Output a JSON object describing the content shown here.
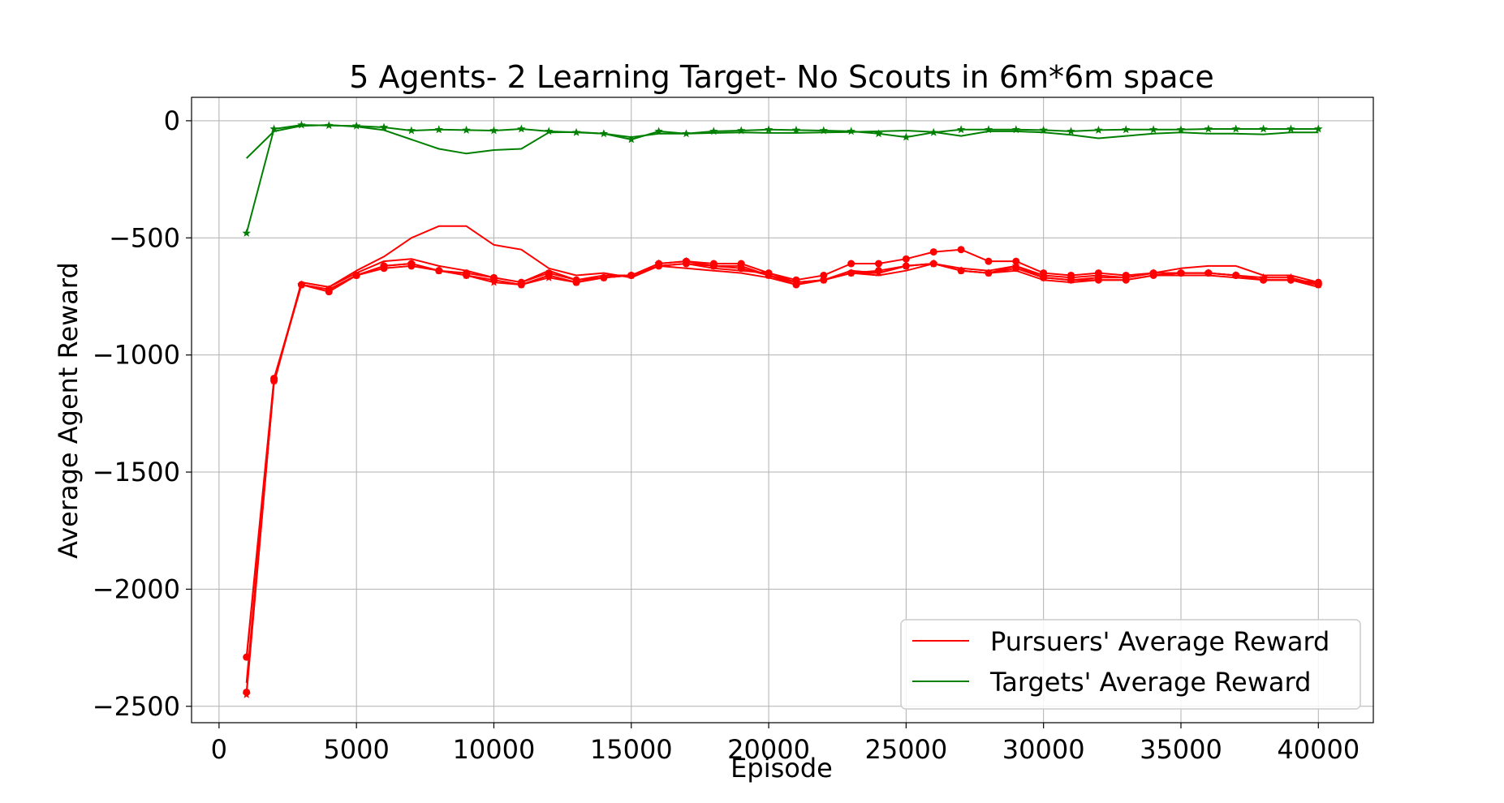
{
  "chart_data": {
    "type": "line",
    "title": "5 Agents- 2 Learning Target- No Scouts in 6m*6m space",
    "xlabel": "Episode",
    "ylabel": "Average Agent Reward",
    "xlim": [
      -1000,
      42000
    ],
    "ylim": [
      -2570,
      100
    ],
    "xticks": [
      0,
      5000,
      10000,
      15000,
      20000,
      25000,
      30000,
      35000,
      40000
    ],
    "xtick_labels": [
      "0",
      "5000",
      "10000",
      "15000",
      "20000",
      "25000",
      "30000",
      "35000",
      "40000"
    ],
    "yticks": [
      0,
      -500,
      -1000,
      -1500,
      -2000,
      -2500
    ],
    "ytick_labels": [
      "0",
      "−500",
      "−1000",
      "−1500",
      "−2000",
      "−2500"
    ],
    "grid": true,
    "legend_position": "lower-right",
    "legend": [
      {
        "label": "Pursuers' Average Reward",
        "color": "#ff0000"
      },
      {
        "label": "Targets' Average Reward",
        "color": "#008000"
      }
    ],
    "x": [
      1000,
      2000,
      3000,
      4000,
      5000,
      6000,
      7000,
      8000,
      9000,
      10000,
      11000,
      12000,
      13000,
      14000,
      15000,
      16000,
      17000,
      18000,
      19000,
      20000,
      21000,
      22000,
      23000,
      24000,
      25000,
      26000,
      27000,
      28000,
      29000,
      30000,
      31000,
      32000,
      33000,
      34000,
      35000,
      36000,
      37000,
      38000,
      39000,
      40000
    ],
    "series": [
      {
        "group": "pursuers",
        "color": "#ff0000",
        "marker": "none",
        "values": [
          -2400,
          -1120,
          -690,
          -710,
          -640,
          -580,
          -500,
          -450,
          -450,
          -530,
          -550,
          -630,
          -660,
          -650,
          -670,
          -620,
          -610,
          -630,
          -640,
          -650,
          -690,
          -680,
          -640,
          -650,
          -620,
          -610,
          -630,
          -640,
          -620,
          -660,
          -670,
          -660,
          -670,
          -650,
          -630,
          -620,
          -620,
          -660,
          -660,
          -690
        ]
      },
      {
        "group": "pursuers",
        "color": "#ff0000",
        "marker": "circle",
        "values": [
          -2290,
          -1100,
          -700,
          -730,
          -660,
          -630,
          -620,
          -640,
          -660,
          -680,
          -700,
          -660,
          -690,
          -670,
          -660,
          -610,
          -600,
          -610,
          -610,
          -650,
          -680,
          -660,
          -610,
          -610,
          -590,
          -560,
          -550,
          -600,
          -600,
          -650,
          -660,
          -650,
          -660,
          -650,
          -650,
          -650,
          -660,
          -680,
          -680,
          -690
        ]
      },
      {
        "group": "pursuers",
        "color": "#ff0000",
        "marker": "circle",
        "values": [
          -2440,
          -1110,
          -700,
          -720,
          -660,
          -620,
          -610,
          -640,
          -650,
          -670,
          -690,
          -650,
          -680,
          -670,
          -660,
          -620,
          -610,
          -620,
          -630,
          -660,
          -700,
          -680,
          -650,
          -640,
          -620,
          -610,
          -640,
          -650,
          -630,
          -670,
          -680,
          -680,
          -680,
          -660,
          -650,
          -650,
          -660,
          -680,
          -680,
          -700
        ]
      },
      {
        "group": "pursuers",
        "color": "#ff0000",
        "marker": "star",
        "values": [
          -2450,
          -1110,
          -700,
          -720,
          -660,
          -620,
          -610,
          -640,
          -660,
          -690,
          -700,
          -670,
          -690,
          -670,
          -660,
          -610,
          -600,
          -620,
          -620,
          -660,
          -690,
          -680,
          -650,
          -650,
          -620,
          -610,
          -640,
          -650,
          -620,
          -670,
          -680,
          -670,
          -670,
          -650,
          -650,
          -650,
          -660,
          -670,
          -670,
          -700
        ]
      },
      {
        "group": "pursuers",
        "color": "#ff0000",
        "marker": "none",
        "values": [
          -2300,
          -1110,
          -690,
          -710,
          -650,
          -600,
          -590,
          -620,
          -640,
          -670,
          -690,
          -640,
          -680,
          -660,
          -660,
          -620,
          -630,
          -640,
          -650,
          -670,
          -700,
          -680,
          -650,
          -660,
          -640,
          -610,
          -640,
          -650,
          -640,
          -680,
          -690,
          -680,
          -680,
          -660,
          -660,
          -660,
          -670,
          -680,
          -680,
          -710
        ]
      },
      {
        "group": "targets",
        "color": "#008000",
        "marker": "none",
        "values": [
          -160,
          -45,
          -22,
          -18,
          -25,
          -40,
          -80,
          -120,
          -140,
          -125,
          -120,
          -50,
          -48,
          -55,
          -70,
          -55,
          -55,
          -52,
          -50,
          -52,
          -52,
          -50,
          -48,
          -45,
          -42,
          -48,
          -65,
          -45,
          -45,
          -50,
          -60,
          -75,
          -65,
          -55,
          -50,
          -55,
          -55,
          -58,
          -50,
          -50
        ]
      },
      {
        "group": "targets",
        "color": "#008000",
        "marker": "star",
        "values": [
          -480,
          -35,
          -18,
          -20,
          -22,
          -28,
          -42,
          -38,
          -40,
          -42,
          -35,
          -45,
          -50,
          -55,
          -80,
          -45,
          -55,
          -45,
          -42,
          -38,
          -40,
          -42,
          -45,
          -55,
          -70,
          -50,
          -38,
          -38,
          -38,
          -40,
          -45,
          -40,
          -38,
          -38,
          -38,
          -35,
          -35,
          -35,
          -35,
          -35
        ]
      }
    ]
  }
}
